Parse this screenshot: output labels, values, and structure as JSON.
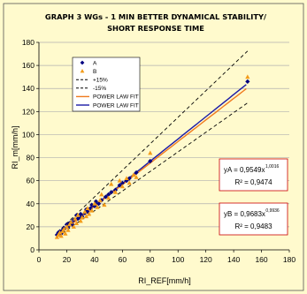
{
  "colors": {
    "background": "#fffacd",
    "series_a": "#000080",
    "series_b": "#f39c1a",
    "fit_a": "#1a1aa6",
    "fit_b": "#f07a1e",
    "band": "#000000",
    "gridline": "#b0b0b0",
    "equation_border": "#cc0000"
  },
  "chart_data": {
    "type": "scatter",
    "title_lines": [
      "GRAPH 3 WGs - 1 MIN BETTER DYNAMICAL STABILITY/",
      "SHORT RESPONSE TIME"
    ],
    "xlabel": "RI_REF[mm/h]",
    "ylabel": "RI_m[mm/h]",
    "xlim": [
      0,
      180
    ],
    "ylim": [
      0,
      180
    ],
    "xticks": [
      0,
      20,
      40,
      60,
      80,
      100,
      120,
      140,
      160,
      180
    ],
    "yticks": [
      0,
      20,
      40,
      60,
      80,
      100,
      120,
      140,
      160,
      180
    ],
    "grid": "horizontal",
    "legend_position": "top-left",
    "legend": [
      "A",
      "B",
      "+15%",
      "-15%",
      "POWER LAW FIT",
      "POWER LAW FIT"
    ],
    "series": [
      {
        "name": "A",
        "marker": "diamond",
        "x": [
          13,
          14,
          15,
          16,
          17,
          18,
          18,
          20,
          21,
          22,
          23,
          24,
          25,
          27,
          28,
          29,
          30,
          31,
          33,
          34,
          35,
          37,
          38,
          40,
          41,
          43,
          45,
          48,
          50,
          52,
          55,
          58,
          60,
          63,
          65,
          70,
          80,
          150
        ],
        "y": [
          13,
          15,
          16,
          14,
          17,
          19,
          18,
          22,
          20,
          23,
          24,
          22,
          26,
          30,
          27,
          28,
          31,
          29,
          32,
          35,
          33,
          36,
          39,
          38,
          42,
          40,
          43,
          46,
          48,
          50,
          52,
          56,
          58,
          60,
          62,
          67,
          77,
          146
        ]
      },
      {
        "name": "B",
        "marker": "triangle",
        "x": [
          13,
          14,
          15,
          16,
          17,
          18,
          19,
          20,
          21,
          22,
          23,
          25,
          26,
          27,
          28,
          30,
          31,
          33,
          34,
          35,
          36,
          38,
          40,
          42,
          44,
          45,
          47,
          50,
          52,
          55,
          58,
          60,
          63,
          65,
          68,
          70,
          80,
          150
        ],
        "y": [
          11,
          13,
          15,
          12,
          16,
          18,
          14,
          20,
          17,
          22,
          24,
          20,
          27,
          23,
          30,
          25,
          28,
          33,
          29,
          36,
          31,
          34,
          40,
          37,
          43,
          48,
          39,
          45,
          57,
          50,
          60,
          55,
          62,
          58,
          65,
          63,
          84,
          150
        ]
      }
    ],
    "reference_lines": [
      {
        "name": "+15%",
        "slope": 1.15
      },
      {
        "name": "-15%",
        "slope": 0.85
      }
    ],
    "fits": [
      {
        "name": "POWER LAW FIT",
        "of": "A",
        "coef": 0.9549,
        "exp": 1.0016
      },
      {
        "name": "POWER LAW FIT",
        "of": "B",
        "coef": 0.9683,
        "exp": 0.9936
      }
    ],
    "equations": [
      {
        "prefix": "yA = 0,9549x",
        "exponent": "1,0016",
        "r2": "R² = 0,9474"
      },
      {
        "prefix": "yB = 0,9683x",
        "exponent": "0,9936",
        "r2": "R² = 0,9483"
      }
    ]
  }
}
